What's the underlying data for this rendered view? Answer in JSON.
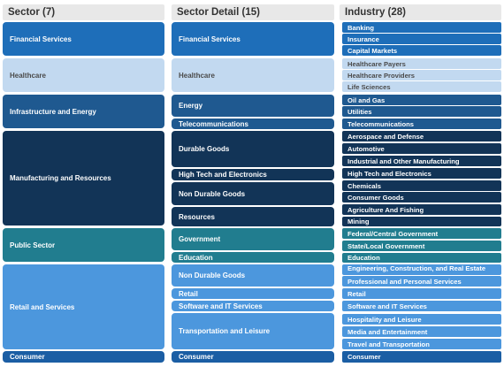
{
  "headers": {
    "sector": "Sector (7)",
    "sector_detail": "Sector Detail (15)",
    "industry": "Industry (28)"
  },
  "sectors": [
    "Financial Services",
    "Healthcare",
    "Infrastructure and Energy",
    "Manufacturing and Resources",
    "Public Sector",
    "Retail and Services",
    "Consumer"
  ],
  "sector_details": [
    "Financial Services",
    "Healthcare",
    "Energy",
    "Telecommunications",
    "Durable Goods",
    "High Tech and Electronics",
    "Non Durable Goods",
    "Resources",
    "Government",
    "Education",
    "Non Durable Goods",
    "Retail",
    "Software and IT Services",
    "Transportation and Leisure",
    "Consumer"
  ],
  "industries": [
    "Banking",
    "Insurance",
    "Capital Markets",
    "Healthcare Payers",
    "Healthcare Providers",
    "Life Sciences",
    "Oil and Gas",
    "Utilities",
    "Telecommunications",
    "Aerospace and Defense",
    "Automotive",
    "Industrial and Other Manufacturing",
    "High Tech and Electronics",
    "Chemicals",
    "Consumer Goods",
    "Agriculture And Fishing",
    "Mining",
    "Federal/Central Government",
    "State/Local Government",
    "Education",
    "Engineering, Construction, and Real Estate",
    "Professional and Personal Services",
    "Retail",
    "Software and IT Services",
    "Hospitality and Leisure",
    "Media and Entertainment",
    "Travel and Transportation",
    "Consumer"
  ],
  "colors": {
    "financial": "#1e6eb9",
    "healthcare": "#c2d9f0",
    "infrastructure": "#1f5990",
    "manufacturing": "#123457",
    "public_sector": "#217d8f",
    "retail": "#4c97dd",
    "consumer": "#1b5ea4"
  }
}
